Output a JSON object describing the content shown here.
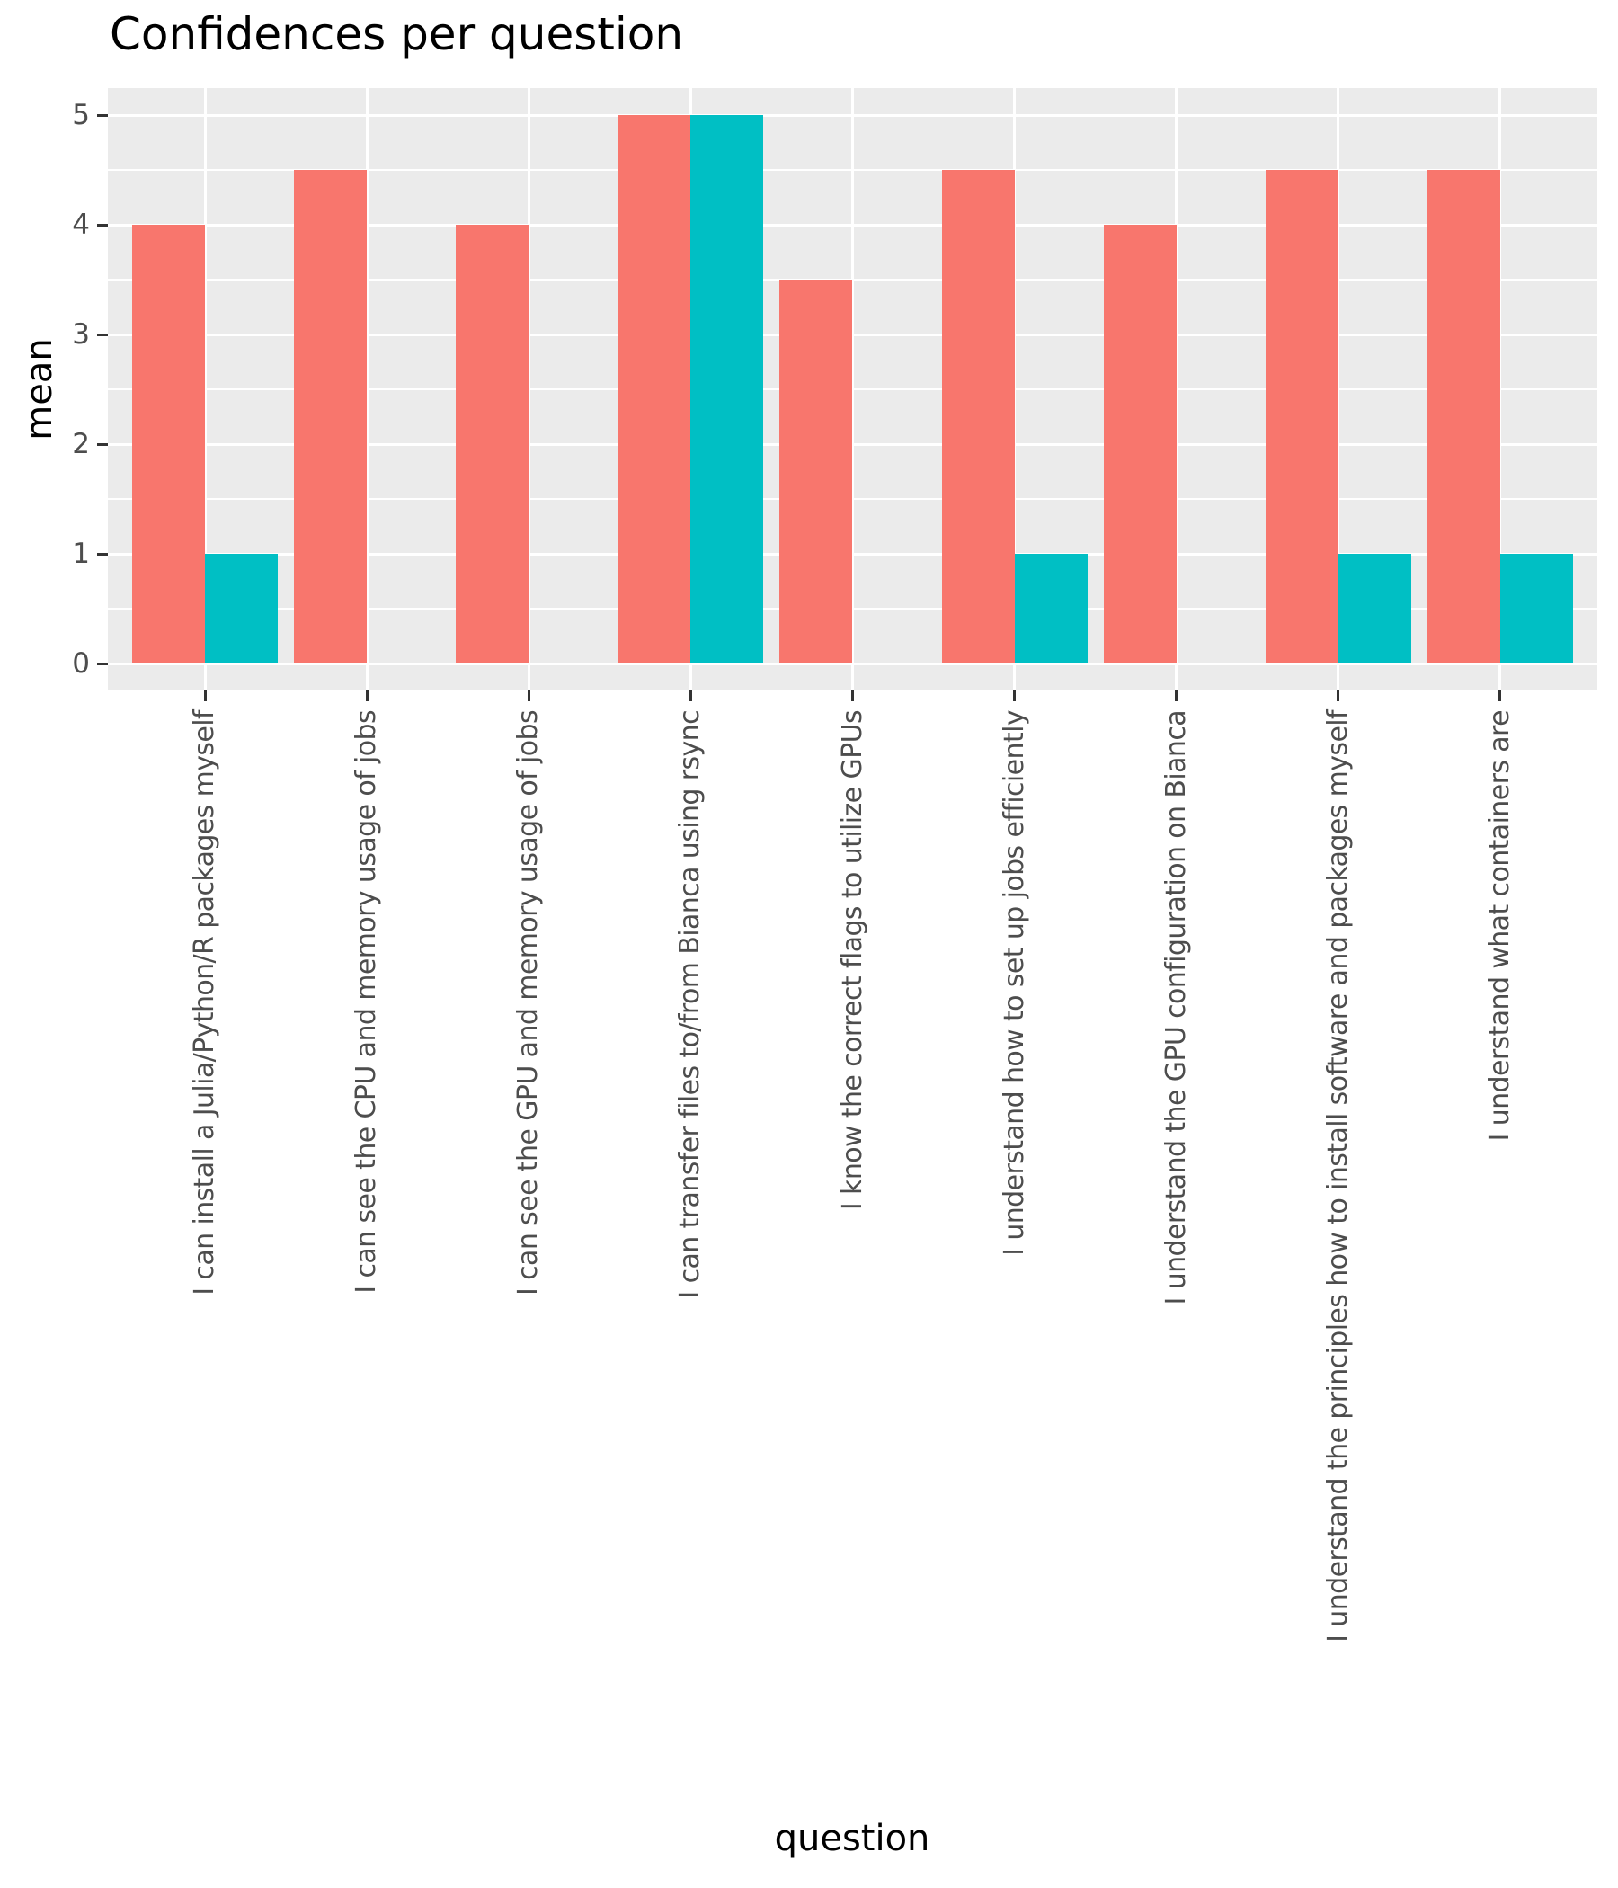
{
  "chart_data": {
    "type": "bar",
    "title": "Confidences per question",
    "xlabel": "question",
    "ylabel": "mean",
    "ylim": [
      0,
      5
    ],
    "yticks": [
      0,
      1,
      2,
      3,
      4,
      5
    ],
    "grid": true,
    "legend": null,
    "categories": [
      "I can install a Julia/Python/R packages myself",
      "I can see the CPU and memory usage of jobs",
      "I can see the GPU and memory usage of jobs",
      "I can transfer files to/from Bianca using rsync",
      "I know the correct flags to utilize GPUs",
      "I understand how to set up jobs efficiently",
      "I understand the GPU configuration on Bianca",
      "I understand the principles how to install software and packages myself",
      "I understand what containers are"
    ],
    "series": [
      {
        "name": "series-1",
        "color": "#F8766D",
        "values": [
          4,
          4.5,
          4,
          5,
          3.5,
          4.5,
          4,
          4.5,
          4.5
        ]
      },
      {
        "name": "series-2",
        "color": "#00BFC4",
        "values": [
          1,
          0,
          0,
          5,
          0,
          1,
          0,
          1,
          1
        ]
      }
    ]
  },
  "theme": {
    "panel_bg": "#EBEBEB",
    "grid_color": "#FFFFFF",
    "tick_color": "#333333",
    "tick_label_color": "#4D4D4D"
  }
}
